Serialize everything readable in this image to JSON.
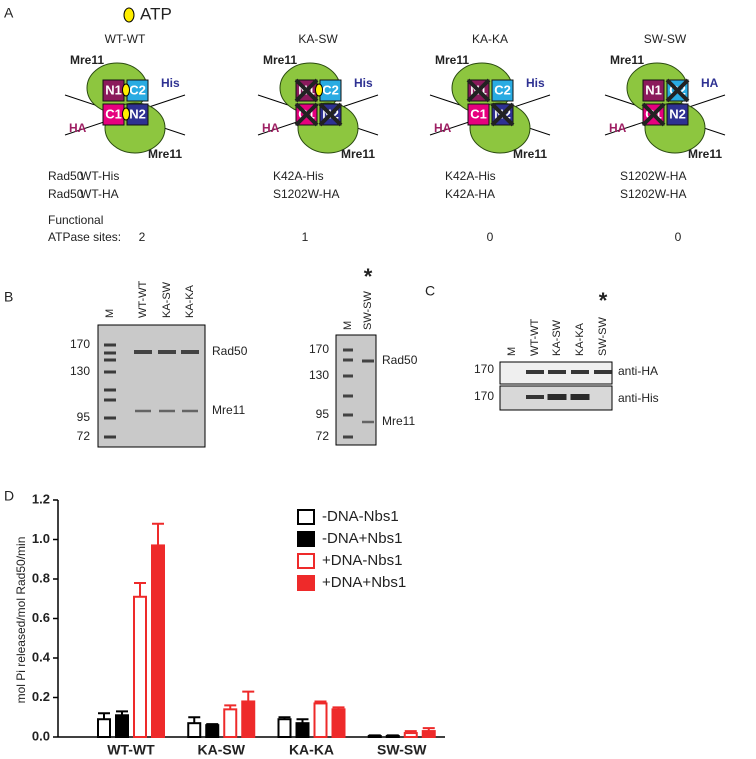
{
  "panel_labels": [
    "A",
    "B",
    "C",
    "D"
  ],
  "atp_legend": "ATP",
  "panel_a": {
    "row_label": "Rad50",
    "functional_label": [
      "Functional",
      "ATPase sites:"
    ],
    "diagrams": [
      {
        "title": "WT-WT",
        "boxes": [
          "N1",
          "C2",
          "C1",
          "N2"
        ],
        "crossed": [
          false,
          false,
          false,
          false
        ],
        "atp": [
          true,
          true
        ],
        "top_label": "Mre11",
        "right_tag": "His",
        "left_tag": "HA",
        "bottom_label": "Mre11",
        "rad50": [
          "WT-His",
          "WT-HA"
        ],
        "sites": "2"
      },
      {
        "title": "KA-SW",
        "boxes": [
          "N1",
          "C2",
          "C1",
          "N2"
        ],
        "crossed": [
          true,
          false,
          true,
          true
        ],
        "atp": [
          true,
          false
        ],
        "top_label": "Mre11",
        "right_tag": "His",
        "left_tag": "HA",
        "bottom_label": "Mre11",
        "rad50": [
          "K42A-His",
          "S1202W-HA"
        ],
        "sites": "1"
      },
      {
        "title": "KA-KA",
        "boxes": [
          "N1",
          "C2",
          "C1",
          "N2"
        ],
        "crossed": [
          true,
          false,
          false,
          true
        ],
        "atp": [
          false,
          false
        ],
        "top_label": "Mre11",
        "right_tag": "His",
        "left_tag": "HA",
        "bottom_label": "Mre11",
        "rad50": [
          "K42A-His",
          "K42A-HA"
        ],
        "sites": "0"
      },
      {
        "title": "SW-SW",
        "boxes": [
          "N1",
          "C2",
          "C1",
          "N2"
        ],
        "crossed": [
          false,
          true,
          true,
          false
        ],
        "atp": [
          false,
          false
        ],
        "top_label": "Mre11",
        "right_tag": "HA",
        "left_tag": "HA",
        "bottom_label": "Mre11",
        "rad50": [
          "S1202W-HA",
          "S1202W-HA"
        ],
        "sites": "0"
      }
    ]
  },
  "panel_b": {
    "gel1": {
      "lanes": [
        "M",
        "WT-WT",
        "KA-SW",
        "KA-KA"
      ],
      "markers": [
        "170",
        "130",
        "95",
        "72"
      ],
      "bands": [
        "Rad50",
        "Mre11"
      ]
    },
    "gel2": {
      "lanes": [
        "M",
        "SW-SW"
      ],
      "asterisk": "*",
      "markers": [
        "170",
        "130",
        "95",
        "72"
      ],
      "bands": [
        "Rad50",
        "Mre11"
      ]
    }
  },
  "panel_c": {
    "lanes": [
      "M",
      "WT-WT",
      "KA-SW",
      "KA-KA",
      "SW-SW"
    ],
    "asterisk": "*",
    "markers": [
      "170",
      "170"
    ],
    "blots": [
      "anti-HA",
      "anti-His"
    ]
  },
  "chart_data": {
    "type": "bar",
    "y_label": "mol Pi released/mol Rad50/min",
    "categories": [
      "WT-WT",
      "KA-SW",
      "KA-KA",
      "SW-SW"
    ],
    "series": [
      {
        "name": "-DNA-Nbs1",
        "color": "#000000",
        "filled": false,
        "values": [
          0.09,
          0.07,
          0.09,
          0.005
        ],
        "errors": [
          0.03,
          0.03,
          0.01,
          0.003
        ]
      },
      {
        "name": "-DNA+Nbs1",
        "color": "#000000",
        "filled": true,
        "values": [
          0.11,
          0.06,
          0.07,
          0.005
        ],
        "errors": [
          0.02,
          0.005,
          0.02,
          0.003
        ]
      },
      {
        "name": "+DNA-Nbs1",
        "color": "#ee2a2a",
        "filled": false,
        "values": [
          0.71,
          0.14,
          0.17,
          0.02
        ],
        "errors": [
          0.07,
          0.02,
          0.01,
          0.01
        ]
      },
      {
        "name": "+DNA+Nbs1",
        "color": "#ee2a2a",
        "filled": true,
        "values": [
          0.97,
          0.18,
          0.14,
          0.03
        ],
        "errors": [
          0.11,
          0.05,
          0.01,
          0.015
        ]
      }
    ],
    "ylim": [
      0,
      1.2
    ],
    "yticks": [
      {
        "value": 0,
        "label": "0.0"
      },
      0.2,
      0.4,
      0.6,
      0.8,
      {
        "value": 1,
        "label": "1.0"
      },
      1.2
    ]
  }
}
